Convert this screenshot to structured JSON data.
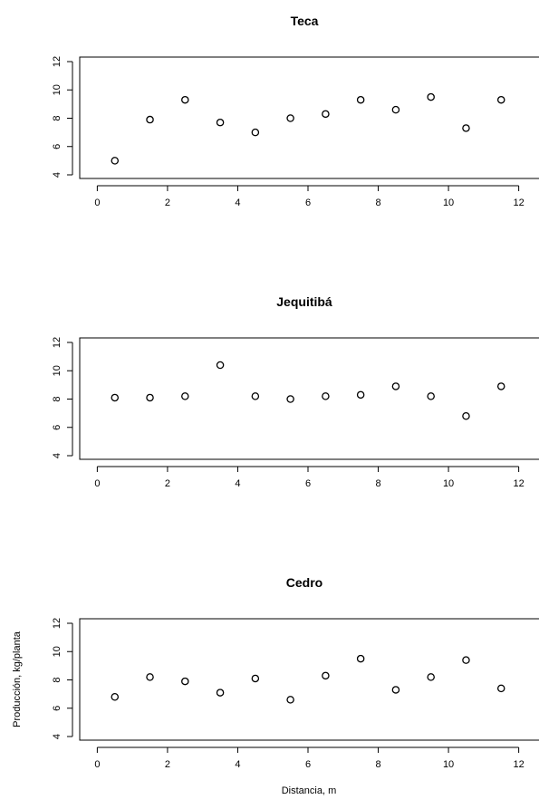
{
  "figure": {
    "xlabel": "Distancia, m",
    "ylabel": "Producción, kg/planta"
  },
  "chart_data": [
    {
      "type": "scatter",
      "title": "Teca",
      "xlim": [
        -0.5,
        12.5
      ],
      "ylim": [
        4,
        12
      ],
      "xticks": [
        "0",
        "2",
        "4",
        "6",
        "8",
        "10",
        "12"
      ],
      "yticks": [
        "4",
        "6",
        "8",
        "10",
        "12"
      ],
      "x": [
        0.5,
        1.5,
        2.5,
        3.5,
        4.5,
        5.5,
        6.5,
        7.5,
        8.5,
        9.5,
        10.5,
        11.5
      ],
      "y": [
        5.0,
        7.9,
        9.3,
        7.7,
        7.0,
        8.0,
        8.3,
        9.3,
        8.6,
        9.5,
        7.3,
        9.3
      ]
    },
    {
      "type": "scatter",
      "title": "Jequitibá",
      "xlim": [
        -0.5,
        12.5
      ],
      "ylim": [
        4,
        12
      ],
      "xticks": [
        "0",
        "2",
        "4",
        "6",
        "8",
        "10",
        "12"
      ],
      "yticks": [
        "4",
        "6",
        "8",
        "10",
        "12"
      ],
      "x": [
        0.5,
        1.5,
        2.5,
        3.5,
        4.5,
        5.5,
        6.5,
        7.5,
        8.5,
        9.5,
        10.5,
        11.5
      ],
      "y": [
        8.1,
        8.1,
        8.2,
        10.4,
        8.2,
        8.0,
        8.2,
        8.3,
        8.9,
        8.2,
        6.8,
        8.9
      ]
    },
    {
      "type": "scatter",
      "title": "Cedro",
      "xlim": [
        -0.5,
        12.5
      ],
      "ylim": [
        4,
        12
      ],
      "xticks": [
        "0",
        "2",
        "4",
        "6",
        "8",
        "10",
        "12"
      ],
      "yticks": [
        "4",
        "6",
        "8",
        "10",
        "12"
      ],
      "x": [
        0.5,
        1.5,
        2.5,
        3.5,
        4.5,
        5.5,
        6.5,
        7.5,
        8.5,
        9.5,
        10.5,
        11.5
      ],
      "y": [
        6.8,
        8.2,
        7.9,
        7.1,
        8.1,
        6.6,
        8.3,
        9.5,
        7.3,
        8.2,
        9.4,
        7.4
      ]
    }
  ]
}
